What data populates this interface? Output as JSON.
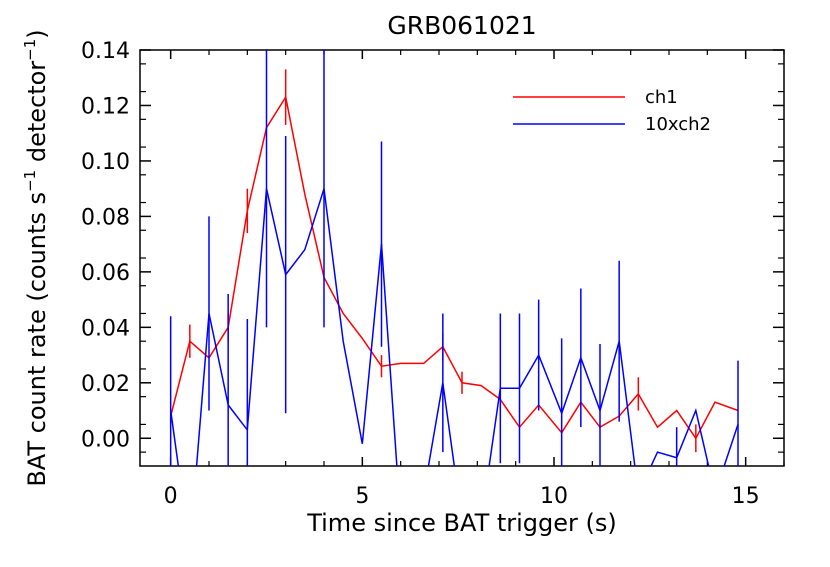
{
  "chart_data": {
    "type": "line",
    "title": "GRB061021",
    "xlabel": "Time since BAT trigger (s)",
    "ylabel_main": "BAT count rate (counts s",
    "ylabel_sup1": "−1",
    "ylabel_mid": " detector",
    "ylabel_sup2": "−1",
    "ylabel_end": ")",
    "xlim": [
      -0.8,
      16.0
    ],
    "ylim": [
      -0.01,
      0.14
    ],
    "x_ticks": [
      0,
      5,
      10,
      15
    ],
    "x_tick_labels": [
      "0",
      "5",
      "10",
      "15"
    ],
    "y_ticks": [
      0.0,
      0.02,
      0.04,
      0.06,
      0.08,
      0.1,
      0.12,
      0.14
    ],
    "y_tick_labels": [
      "0.00",
      "0.02",
      "0.04",
      "0.06",
      "0.08",
      "0.10",
      "0.12",
      "0.14"
    ],
    "legend_position": "top-right",
    "series": [
      {
        "name": "ch1",
        "color": "#ff0000",
        "x": [
          0,
          0.5,
          1.0,
          1.5,
          2.0,
          2.5,
          3.0,
          3.5,
          4.0,
          4.5,
          5.0,
          5.5,
          6.0,
          6.6,
          7.1,
          7.6,
          8.1,
          8.6,
          9.1,
          9.6,
          10.2,
          10.7,
          11.2,
          11.7,
          12.2,
          12.7,
          13.2,
          13.7,
          14.2,
          14.8
        ],
        "y": [
          0.008,
          0.035,
          0.029,
          0.04,
          0.082,
          0.112,
          0.123,
          0.088,
          0.058,
          0.045,
          0.036,
          0.026,
          0.027,
          0.027,
          0.033,
          0.02,
          0.019,
          0.014,
          0.004,
          0.012,
          0.002,
          0.013,
          0.004,
          0.008,
          0.016,
          0.004,
          0.01,
          0.0,
          0.013,
          0.01
        ],
        "err": [
          0.0,
          0.006,
          0.0,
          0.005,
          0.008,
          0.0,
          0.01,
          0.0,
          0.0,
          0.0,
          0.0,
          0.004,
          0.0,
          0.0,
          0.005,
          0.004,
          0.0,
          0.0,
          0.0,
          0.0,
          0.0,
          0.0,
          0.0,
          0.0,
          0.006,
          0.0,
          0.0,
          0.005,
          0.0,
          0.0
        ]
      },
      {
        "name": "10xch2",
        "color": "#0000ff",
        "x": [
          0,
          0.5,
          1.0,
          1.5,
          2.0,
          2.5,
          3.0,
          3.5,
          4.0,
          4.5,
          5.0,
          5.5,
          6.0,
          6.6,
          7.1,
          7.6,
          8.1,
          8.6,
          9.1,
          9.6,
          10.2,
          10.7,
          11.2,
          11.7,
          12.2,
          12.7,
          13.2,
          13.7,
          14.2,
          14.8
        ],
        "y": [
          0.01,
          -0.04,
          0.045,
          0.012,
          0.003,
          0.09,
          0.059,
          0.068,
          0.09,
          0.035,
          -0.002,
          0.07,
          -0.03,
          -0.02,
          0.02,
          -0.03,
          -0.03,
          0.018,
          0.018,
          0.03,
          0.009,
          0.029,
          0.01,
          0.035,
          -0.02,
          -0.005,
          -0.007,
          0.01,
          -0.02,
          0.005
        ],
        "err": [
          0.034,
          0.0,
          0.035,
          0.04,
          0.04,
          0.05,
          0.05,
          0.0,
          0.05,
          0.0,
          0.0,
          0.037,
          0.0,
          0.0,
          0.025,
          0.0,
          0.0,
          0.027,
          0.027,
          0.02,
          0.027,
          0.025,
          0.024,
          0.029,
          0.0,
          0.0,
          0.011,
          0.0,
          0.0,
          0.023
        ]
      }
    ]
  }
}
